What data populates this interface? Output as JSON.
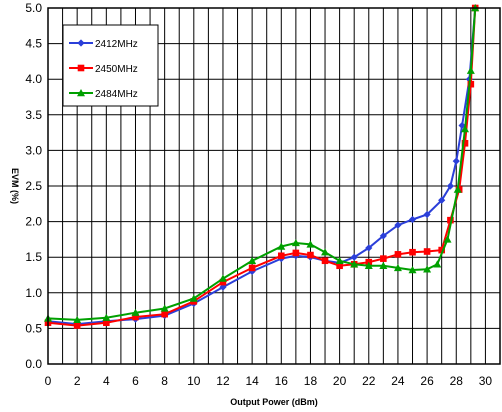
{
  "chart_data": {
    "type": "line",
    "title": "",
    "xlabel": "Output Power (dBm)",
    "ylabel": "EVM (%)",
    "xlim": [
      0,
      31
    ],
    "ylim": [
      0,
      5.0
    ],
    "x_ticks": [
      0,
      2,
      4,
      6,
      8,
      10,
      12,
      14,
      16,
      18,
      20,
      22,
      24,
      26,
      28,
      30
    ],
    "y_ticks": [
      "0.0",
      "0.5",
      "1.0",
      "1.5",
      "2.0",
      "2.5",
      "3.0",
      "3.5",
      "4.0",
      "4.5",
      "5.0"
    ],
    "grid": true,
    "legend_position": "top-left",
    "series": [
      {
        "name": "2412MHz",
        "color": "#2b3fd9",
        "marker": "diamond",
        "x": [
          0,
          2,
          4,
          6,
          8,
          10,
          12,
          14,
          16,
          17,
          18,
          19,
          20,
          21,
          22,
          23,
          24,
          25,
          26,
          27,
          27.6,
          28,
          28.4,
          28.9,
          29.3
        ],
        "y": [
          0.6,
          0.56,
          0.6,
          0.63,
          0.68,
          0.85,
          1.08,
          1.3,
          1.48,
          1.52,
          1.5,
          1.45,
          1.42,
          1.5,
          1.63,
          1.8,
          1.95,
          2.03,
          2.1,
          2.3,
          2.5,
          2.85,
          3.35,
          4.0,
          5.0
        ]
      },
      {
        "name": "2450MHz",
        "color": "#ff0000",
        "marker": "square",
        "x": [
          0,
          2,
          4,
          6,
          8,
          10,
          12,
          14,
          16,
          17,
          18,
          19,
          20,
          21,
          22,
          23,
          24,
          25,
          26,
          27,
          27.6,
          28.2,
          28.6,
          29.0,
          29.3
        ],
        "y": [
          0.58,
          0.54,
          0.58,
          0.66,
          0.7,
          0.88,
          1.15,
          1.35,
          1.52,
          1.56,
          1.53,
          1.45,
          1.38,
          1.4,
          1.43,
          1.48,
          1.54,
          1.57,
          1.58,
          1.6,
          2.02,
          2.45,
          3.1,
          3.93,
          5.0
        ]
      },
      {
        "name": "2484MHz",
        "color": "#00a000",
        "marker": "triangle",
        "x": [
          0,
          2,
          4,
          6,
          8,
          10,
          12,
          14,
          16,
          17,
          18,
          19,
          20,
          21,
          22,
          23,
          24,
          25,
          26,
          26.7,
          27.4,
          28.1,
          28.6,
          29.0,
          29.3
        ],
        "y": [
          0.64,
          0.62,
          0.65,
          0.72,
          0.78,
          0.92,
          1.2,
          1.45,
          1.65,
          1.7,
          1.68,
          1.57,
          1.45,
          1.4,
          1.38,
          1.38,
          1.35,
          1.32,
          1.33,
          1.4,
          1.75,
          2.45,
          3.3,
          4.12,
          5.0
        ]
      }
    ]
  }
}
